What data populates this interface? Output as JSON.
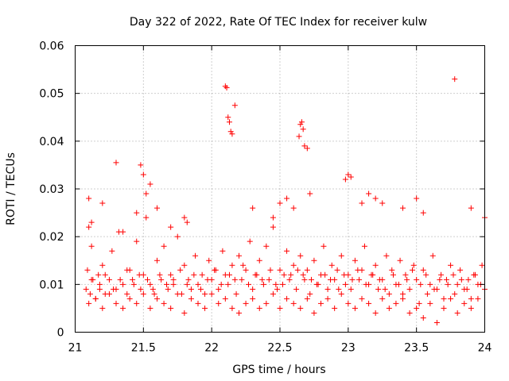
{
  "chart_data": {
    "type": "scatter",
    "title": "Day 322 of 2022, Rate Of TEC Index for receiver kulw",
    "xlabel": "GPS time / hours",
    "ylabel": "ROTI / TECUs",
    "xlim": [
      21,
      24
    ],
    "ylim": [
      0,
      0.06
    ],
    "xticks": [
      21,
      21.5,
      22,
      22.5,
      23,
      23.5,
      24
    ],
    "xtick_labels": [
      "21",
      "21.5",
      "22",
      "22.5",
      "23",
      "23.5",
      "24"
    ],
    "yticks": [
      0,
      0.01,
      0.02,
      0.03,
      0.04,
      0.05,
      0.06
    ],
    "ytick_labels": [
      "0",
      "0.01",
      "0.02",
      "0.03",
      "0.04",
      "0.05",
      "0.06"
    ],
    "grid": true,
    "legend": "none",
    "marker": "plus",
    "color": "#ff0000",
    "series": [
      {
        "x": [
          21.08,
          21.09,
          21.1,
          21.11,
          21.12,
          21.13,
          21.15,
          21.17,
          21.18,
          21.2,
          21.22,
          21.25,
          21.27,
          21.3,
          21.32,
          21.35,
          21.38,
          21.4,
          21.42,
          21.45,
          21.48,
          21.5,
          21.52,
          21.55,
          21.58,
          21.6,
          21.63,
          21.65,
          21.68,
          21.7,
          21.72,
          21.75,
          21.78,
          21.8,
          21.83,
          21.85,
          21.88,
          21.9,
          21.93,
          21.95,
          21.98,
          22.0,
          22.02,
          22.05,
          22.08,
          22.1,
          22.12,
          22.15,
          22.18,
          22.2,
          22.22,
          22.25,
          22.28,
          22.3,
          22.32,
          22.35,
          22.38,
          22.4,
          22.42,
          22.45,
          22.48,
          22.5,
          22.52,
          22.55,
          22.58,
          22.6,
          22.62,
          22.65,
          22.68,
          22.7,
          22.72,
          22.75,
          22.78,
          22.8,
          22.82,
          22.85,
          22.88,
          22.9,
          22.92,
          22.95,
          22.98,
          23.0,
          23.02,
          23.05,
          23.08,
          23.1,
          23.12,
          23.15,
          23.18,
          23.2,
          23.22,
          23.25,
          23.28,
          23.3,
          23.32,
          23.35,
          23.38,
          23.4,
          23.42,
          23.45,
          23.48,
          23.5,
          23.52,
          23.55,
          23.58,
          23.6,
          23.62,
          23.65,
          23.68,
          23.7,
          23.72,
          23.75,
          23.78,
          23.8,
          23.82,
          23.85,
          23.88,
          23.9,
          23.92,
          23.95,
          23.98,
          24.0,
          21.1,
          21.12,
          21.2,
          21.3,
          21.35,
          21.45,
          21.48,
          21.5,
          21.52,
          21.55,
          21.6,
          21.7,
          21.8,
          21.82,
          22.1,
          22.11,
          22.12,
          22.13,
          22.14,
          22.15,
          22.17,
          22.3,
          22.45,
          22.5,
          22.55,
          22.6,
          22.64,
          22.65,
          22.66,
          22.67,
          22.68,
          22.7,
          22.72,
          22.98,
          23.0,
          23.02,
          23.1,
          23.15,
          23.2,
          23.25,
          23.4,
          23.5,
          23.55,
          23.78,
          23.9,
          24.0,
          21.1,
          21.15,
          21.2,
          21.25,
          21.3,
          21.35,
          21.4,
          21.45,
          21.5,
          21.55,
          21.6,
          21.65,
          21.7,
          21.75,
          21.8,
          21.85,
          21.9,
          21.95,
          22.0,
          22.05,
          22.1,
          22.15,
          22.2,
          22.25,
          22.3,
          22.35,
          22.4,
          22.45,
          22.5,
          22.55,
          22.6,
          22.65,
          22.7,
          22.75,
          22.8,
          22.85,
          22.9,
          22.95,
          23.0,
          23.05,
          23.1,
          23.15,
          23.2,
          23.25,
          23.3,
          23.35,
          23.4,
          23.45,
          23.5,
          23.55,
          23.6,
          23.65,
          23.7,
          23.75,
          23.8,
          23.85,
          23.9,
          23.95,
          21.12,
          21.18,
          21.22,
          21.28,
          21.33,
          21.38,
          21.43,
          21.47,
          21.53,
          21.57,
          21.62,
          21.67,
          21.72,
          21.77,
          21.82,
          21.87,
          21.92,
          21.97,
          22.03,
          22.07,
          22.13,
          22.17,
          22.23,
          22.27,
          22.33,
          22.37,
          22.43,
          22.47,
          22.53,
          22.57,
          22.63,
          22.67,
          22.73,
          22.77,
          22.83,
          22.87,
          22.93,
          22.97,
          23.03,
          23.07,
          23.13,
          23.17,
          23.23,
          23.27,
          23.33,
          23.37,
          23.43,
          23.47,
          23.53,
          23.57,
          23.63,
          23.67,
          23.73,
          23.77,
          23.83,
          23.87,
          23.93,
          23.97
        ],
        "y": [
          0.009,
          0.013,
          0.022,
          0.008,
          0.018,
          0.011,
          0.007,
          0.012,
          0.009,
          0.014,
          0.008,
          0.011,
          0.017,
          0.009,
          0.021,
          0.01,
          0.008,
          0.013,
          0.011,
          0.019,
          0.009,
          0.012,
          0.024,
          0.01,
          0.008,
          0.015,
          0.011,
          0.018,
          0.009,
          0.012,
          0.01,
          0.02,
          0.008,
          0.014,
          0.011,
          0.009,
          0.016,
          0.01,
          0.012,
          0.008,
          0.015,
          0.011,
          0.013,
          0.009,
          0.017,
          0.012,
          0.01,
          0.014,
          0.008,
          0.016,
          0.011,
          0.013,
          0.019,
          0.009,
          0.012,
          0.015,
          0.01,
          0.018,
          0.011,
          0.022,
          0.009,
          0.013,
          0.01,
          0.017,
          0.012,
          0.014,
          0.009,
          0.016,
          0.011,
          0.013,
          0.008,
          0.015,
          0.01,
          0.012,
          0.018,
          0.009,
          0.014,
          0.011,
          0.013,
          0.016,
          0.01,
          0.012,
          0.009,
          0.015,
          0.011,
          0.013,
          0.018,
          0.01,
          0.012,
          0.014,
          0.009,
          0.011,
          0.016,
          0.008,
          0.013,
          0.01,
          0.015,
          0.007,
          0.012,
          0.009,
          0.014,
          0.011,
          0.006,
          0.013,
          0.008,
          0.01,
          0.016,
          0.009,
          0.012,
          0.007,
          0.011,
          0.014,
          0.008,
          0.01,
          0.013,
          0.009,
          0.011,
          0.007,
          0.012,
          0.01,
          0.014,
          0.009,
          0.028,
          0.023,
          0.027,
          0.0355,
          0.021,
          0.025,
          0.035,
          0.033,
          0.029,
          0.031,
          0.026,
          0.022,
          0.024,
          0.023,
          0.0515,
          0.0512,
          0.045,
          0.044,
          0.042,
          0.0415,
          0.0475,
          0.026,
          0.024,
          0.027,
          0.028,
          0.026,
          0.041,
          0.0435,
          0.044,
          0.0425,
          0.039,
          0.0385,
          0.029,
          0.032,
          0.033,
          0.0325,
          0.027,
          0.029,
          0.028,
          0.027,
          0.026,
          0.028,
          0.025,
          0.053,
          0.026,
          0.024,
          0.006,
          0.007,
          0.005,
          0.008,
          0.006,
          0.005,
          0.007,
          0.006,
          0.008,
          0.005,
          0.007,
          0.006,
          0.005,
          0.008,
          0.004,
          0.007,
          0.006,
          0.005,
          0.008,
          0.006,
          0.007,
          0.005,
          0.004,
          0.006,
          0.007,
          0.005,
          0.006,
          0.008,
          0.005,
          0.007,
          0.006,
          0.005,
          0.007,
          0.004,
          0.006,
          0.007,
          0.005,
          0.008,
          0.006,
          0.005,
          0.007,
          0.006,
          0.004,
          0.007,
          0.005,
          0.006,
          0.008,
          0.004,
          0.005,
          0.003,
          0.006,
          0.002,
          0.005,
          0.007,
          0.004,
          0.006,
          0.005,
          0.007,
          0.011,
          0.01,
          0.012,
          0.009,
          0.011,
          0.013,
          0.01,
          0.012,
          0.011,
          0.009,
          0.012,
          0.01,
          0.011,
          0.013,
          0.01,
          0.012,
          0.009,
          0.011,
          0.013,
          0.01,
          0.012,
          0.011,
          0.014,
          0.01,
          0.012,
          0.011,
          0.013,
          0.01,
          0.012,
          0.011,
          0.013,
          0.012,
          0.011,
          0.01,
          0.012,
          0.011,
          0.009,
          0.012,
          0.011,
          0.013,
          0.01,
          0.012,
          0.011,
          0.009,
          0.012,
          0.01,
          0.011,
          0.013,
          0.01,
          0.012,
          0.009,
          0.011,
          0.01,
          0.012,
          0.011,
          0.009,
          0.012,
          0.01
        ]
      }
    ]
  }
}
